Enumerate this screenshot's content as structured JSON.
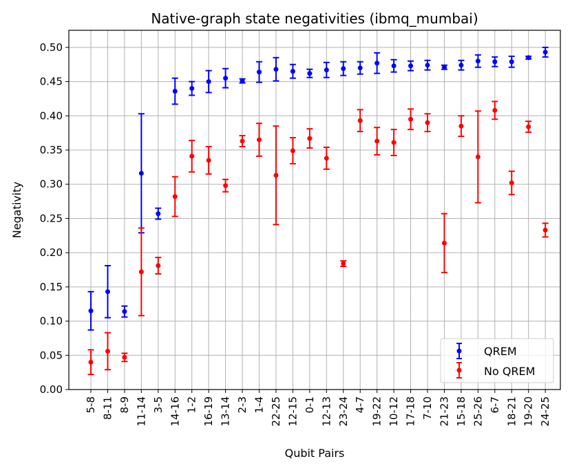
{
  "chart_data": {
    "type": "scatter",
    "title": "Native-graph state negativities (ibmq_mumbai)",
    "xlabel": "Qubit Pairs",
    "ylabel": "Negativity",
    "ylim": [
      0.0,
      0.525
    ],
    "yticks": [
      "0.00",
      "0.05",
      "0.10",
      "0.15",
      "0.20",
      "0.25",
      "0.30",
      "0.35",
      "0.40",
      "0.45",
      "0.50"
    ],
    "grid": true,
    "legend_position": "lower-right",
    "categories": [
      "5-8",
      "8-11",
      "8-9",
      "11-14",
      "3-5",
      "14-16",
      "1-2",
      "16-19",
      "13-14",
      "2-3",
      "1-4",
      "22-25",
      "12-15",
      "0-1",
      "12-13",
      "23-24",
      "4-7",
      "19-22",
      "10-12",
      "17-18",
      "7-10",
      "21-23",
      "15-18",
      "25-26",
      "6-7",
      "18-21",
      "19-20",
      "24-25"
    ],
    "series": [
      {
        "name": "QREM",
        "color": "#0000ff",
        "values": [
          0.115,
          0.143,
          0.114,
          0.316,
          0.257,
          0.436,
          0.44,
          0.45,
          0.455,
          0.451,
          0.464,
          0.468,
          0.465,
          0.462,
          0.467,
          0.469,
          0.47,
          0.477,
          0.473,
          0.473,
          0.474,
          0.471,
          0.474,
          0.48,
          0.479,
          0.479,
          0.485,
          0.493
        ],
        "err": [
          0.028,
          0.038,
          0.008,
          0.087,
          0.008,
          0.019,
          0.01,
          0.016,
          0.014,
          0.003,
          0.015,
          0.017,
          0.01,
          0.006,
          0.011,
          0.01,
          0.009,
          0.015,
          0.009,
          0.007,
          0.007,
          0.003,
          0.007,
          0.009,
          0.007,
          0.008,
          0.002,
          0.007
        ]
      },
      {
        "name": "No QREM",
        "color": "#ff0000",
        "values": [
          0.04,
          0.056,
          0.047,
          0.172,
          0.181,
          0.282,
          0.341,
          0.335,
          0.298,
          0.363,
          0.365,
          0.313,
          0.349,
          0.367,
          0.338,
          0.184,
          0.393,
          0.363,
          0.361,
          0.395,
          0.39,
          0.214,
          0.385,
          0.34,
          0.408,
          0.302,
          0.384,
          0.233
        ],
        "err": [
          0.018,
          0.027,
          0.006,
          0.064,
          0.012,
          0.029,
          0.023,
          0.02,
          0.009,
          0.008,
          0.024,
          0.072,
          0.019,
          0.014,
          0.016,
          0.004,
          0.016,
          0.02,
          0.019,
          0.015,
          0.013,
          0.043,
          0.015,
          0.067,
          0.013,
          0.017,
          0.008,
          0.01
        ]
      }
    ]
  }
}
